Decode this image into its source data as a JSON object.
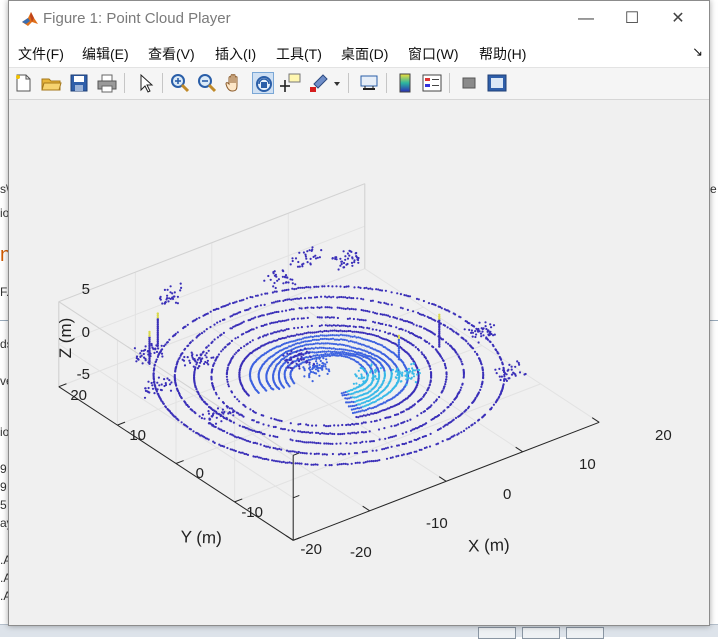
{
  "window": {
    "title": "Figure 1: Point Cloud Player",
    "controls": {
      "minimize": "—",
      "maximize": "☐",
      "close": "✕"
    }
  },
  "menu": {
    "items": [
      {
        "label": "文件(F)"
      },
      {
        "label": "编辑(E)"
      },
      {
        "label": "查看(V)"
      },
      {
        "label": "插入(I)"
      },
      {
        "label": "工具(T)"
      },
      {
        "label": "桌面(D)"
      },
      {
        "label": "窗口(W)"
      },
      {
        "label": "帮助(H)"
      }
    ],
    "dock_arrow": "↘"
  },
  "toolbar": {
    "buttons": [
      {
        "icon": "new-figure-icon"
      },
      {
        "icon": "open-icon"
      },
      {
        "icon": "save-icon"
      },
      {
        "icon": "print-icon"
      },
      {
        "icon": "pointer-icon"
      },
      {
        "icon": "zoom-in-icon"
      },
      {
        "icon": "zoom-out-icon"
      },
      {
        "icon": "pan-hand-icon"
      },
      {
        "icon": "rotate-3d-icon",
        "active": true
      },
      {
        "icon": "data-cursor-icon"
      },
      {
        "icon": "brush-icon"
      },
      {
        "icon": "link-plot-icon"
      },
      {
        "icon": "colorbar-icon"
      },
      {
        "icon": "legend-icon"
      },
      {
        "icon": "hide-plot-tools-icon"
      },
      {
        "icon": "show-plot-tools-icon"
      }
    ]
  },
  "behind_window_text": [
    "s\\",
    "io",
    "n",
    "F.",
    "ds",
    "ve",
    "io",
    "9",
    "9",
    "5",
    "ay",
    ".A",
    ".A",
    ".A",
    "e"
  ],
  "plot": {
    "xlabel": "X (m)",
    "ylabel": "Y (m)",
    "zlabel": "Z (m)",
    "x_ticks": [
      "-20",
      "-10",
      "0",
      "10",
      "20"
    ],
    "y_ticks": [
      "-20",
      "-10",
      "0",
      "10",
      "20"
    ],
    "z_ticks": [
      "-5",
      "0",
      "5"
    ]
  },
  "chart_data": {
    "type": "scatter",
    "title": "",
    "xlabel": "X (m)",
    "ylabel": "Y (m)",
    "zlabel": "Z (m)",
    "xlim": [
      -20,
      20
    ],
    "ylim": [
      -20,
      20
    ],
    "zlim": [
      -5,
      5
    ],
    "grid": true,
    "colors": {
      "low": "#3a2fb8",
      "mid": "#3d62e0",
      "high": "#38b9e8",
      "peak": "#d9d94a"
    },
    "ring_radii_m": [
      4.0,
      4.6,
      5.2,
      5.8,
      6.5,
      7.3,
      8.2,
      9.3,
      10.6,
      12.2,
      14.0,
      16.0,
      18.2
    ],
    "ground_z_m": -1.6,
    "blocked_sector_deg": [
      170,
      250
    ]
  }
}
